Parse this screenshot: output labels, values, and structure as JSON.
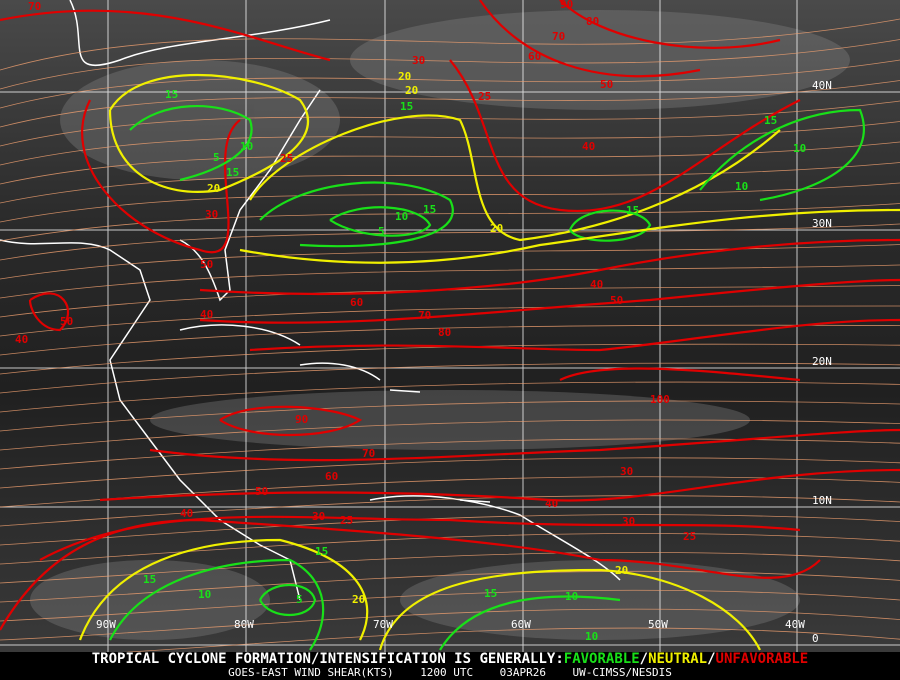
{
  "colors": {
    "favorable": "#19e019",
    "neutral": "#f0f000",
    "unfavorable": "#e00000",
    "streamline": "#f0a070",
    "coast": "#ffffff",
    "grid": "#ffffff"
  },
  "grid": {
    "longitudes": [
      "90W",
      "80W",
      "70W",
      "60W",
      "50W",
      "40W"
    ],
    "latitudes": [
      "40N",
      "30N",
      "20N",
      "10N",
      "0"
    ]
  },
  "contour_labels": [
    {
      "v": "70",
      "c": "unfavorable"
    },
    {
      "v": "90",
      "c": "unfavorable"
    },
    {
      "v": "80",
      "c": "unfavorable"
    },
    {
      "v": "70",
      "c": "unfavorable"
    },
    {
      "v": "60",
      "c": "unfavorable"
    },
    {
      "v": "50",
      "c": "unfavorable"
    },
    {
      "v": "15",
      "c": "favorable"
    },
    {
      "v": "20",
      "c": "neutral"
    },
    {
      "v": "15",
      "c": "favorable"
    },
    {
      "v": "20",
      "c": "neutral"
    },
    {
      "v": "25",
      "c": "unfavorable"
    },
    {
      "v": "30",
      "c": "unfavorable"
    },
    {
      "v": "5",
      "c": "favorable"
    },
    {
      "v": "10",
      "c": "favorable"
    },
    {
      "v": "15",
      "c": "favorable"
    },
    {
      "v": "20",
      "c": "neutral"
    },
    {
      "v": "25",
      "c": "unfavorable"
    },
    {
      "v": "30",
      "c": "unfavorable"
    },
    {
      "v": "5",
      "c": "favorable"
    },
    {
      "v": "10",
      "c": "favorable"
    },
    {
      "v": "15",
      "c": "favorable"
    },
    {
      "v": "20",
      "c": "neutral"
    },
    {
      "v": "40",
      "c": "unfavorable"
    },
    {
      "v": "15",
      "c": "favorable"
    },
    {
      "v": "10",
      "c": "favorable"
    },
    {
      "v": "10",
      "c": "favorable"
    },
    {
      "v": "15",
      "c": "favorable"
    },
    {
      "v": "40",
      "c": "unfavorable"
    },
    {
      "v": "50",
      "c": "unfavorable"
    },
    {
      "v": "40",
      "c": "unfavorable"
    },
    {
      "v": "50",
      "c": "unfavorable"
    },
    {
      "v": "60",
      "c": "unfavorable"
    },
    {
      "v": "70",
      "c": "unfavorable"
    },
    {
      "v": "80",
      "c": "unfavorable"
    },
    {
      "v": "40",
      "c": "unfavorable"
    },
    {
      "v": "50",
      "c": "unfavorable"
    },
    {
      "v": "90",
      "c": "unfavorable"
    },
    {
      "v": "100",
      "c": "unfavorable"
    },
    {
      "v": "70",
      "c": "unfavorable"
    },
    {
      "v": "60",
      "c": "unfavorable"
    },
    {
      "v": "50",
      "c": "unfavorable"
    },
    {
      "v": "30",
      "c": "unfavorable"
    },
    {
      "v": "40",
      "c": "unfavorable"
    },
    {
      "v": "40",
      "c": "unfavorable"
    },
    {
      "v": "30",
      "c": "unfavorable"
    },
    {
      "v": "25",
      "c": "unfavorable"
    },
    {
      "v": "30",
      "c": "unfavorable"
    },
    {
      "v": "25",
      "c": "unfavorable"
    },
    {
      "v": "20",
      "c": "neutral"
    },
    {
      "v": "15",
      "c": "favorable"
    },
    {
      "v": "15",
      "c": "favorable"
    },
    {
      "v": "10",
      "c": "favorable"
    },
    {
      "v": "5",
      "c": "favorable"
    },
    {
      "v": "20",
      "c": "neutral"
    },
    {
      "v": "15",
      "c": "favorable"
    },
    {
      "v": "10",
      "c": "favorable"
    },
    {
      "v": "10",
      "c": "favorable"
    }
  ],
  "footer": {
    "headline": "TROPICAL CYCLONE FORMATION/INTENSIFICATION IS GENERALLY:",
    "favorable": "FAVORABLE",
    "sep": "/",
    "neutral": "NEUTRAL",
    "unfavorable": "UNFAVORABLE",
    "product": "GOES-EAST WIND SHEAR(KTS)",
    "time": "1200 UTC",
    "date": "03APR26",
    "source": "UW-CIMSS/NESDIS"
  }
}
